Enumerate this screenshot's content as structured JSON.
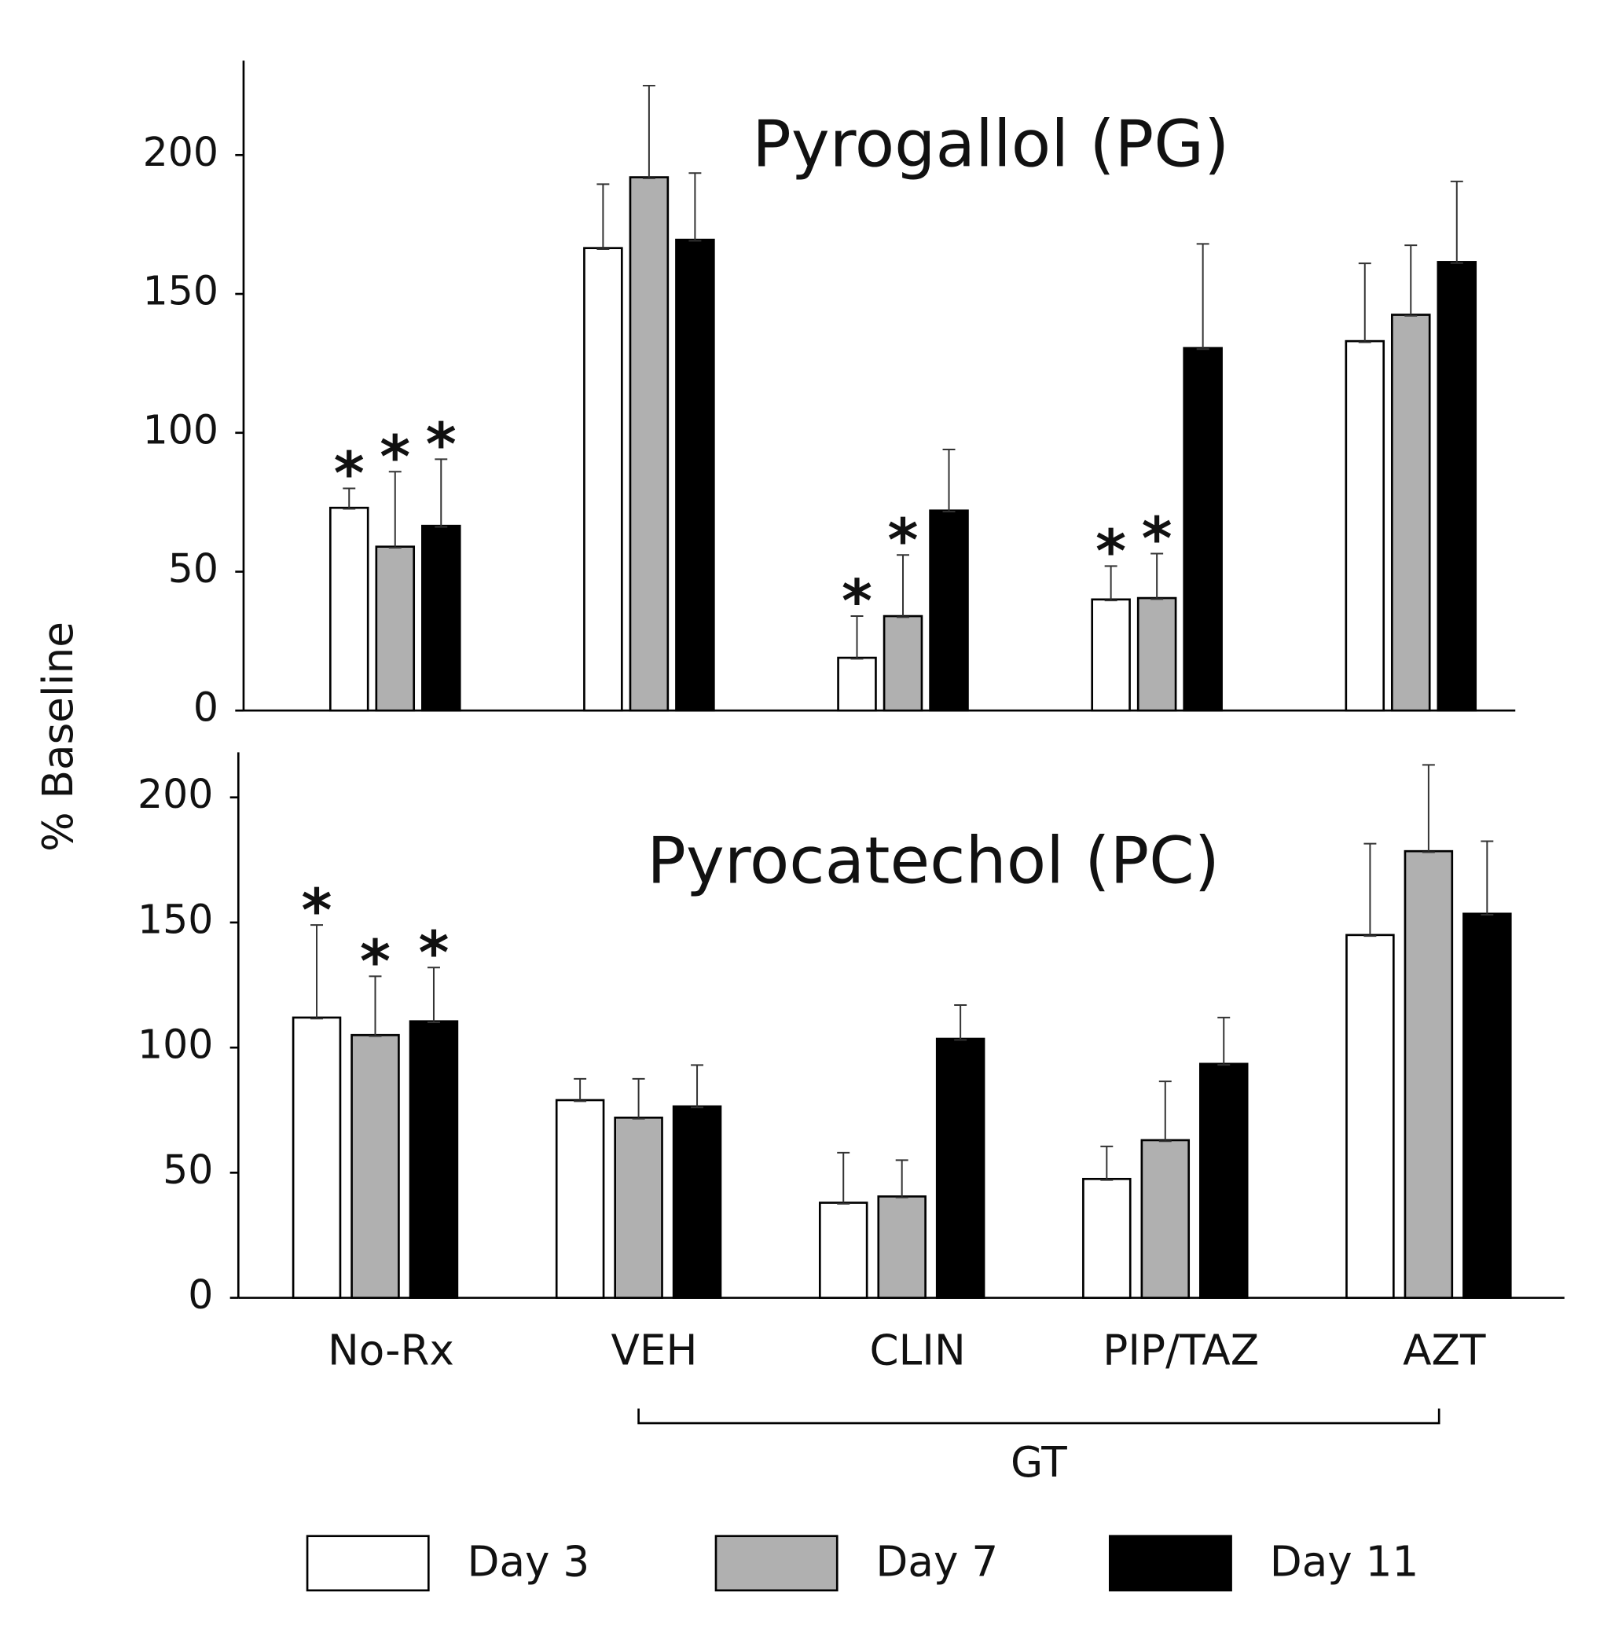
{
  "chart_data": [
    {
      "type": "bar",
      "title": "Pyrogallol (PG)",
      "y_label": "% Baseline",
      "ylim": [
        0,
        234
      ],
      "yticks": [
        0,
        50,
        100,
        150,
        200
      ],
      "series": [
        {
          "color": "#ffffff",
          "values": [
            73,
            166.5,
            19,
            40,
            133
          ],
          "errors": [
            7,
            23,
            15,
            12,
            28
          ],
          "markers": [
            "*",
            null,
            "*",
            "*",
            null
          ]
        },
        {
          "color": "#b0b0b0",
          "values": [
            59,
            192,
            34,
            40.5,
            142.5
          ],
          "errors": [
            27,
            33,
            22,
            16,
            25
          ],
          "markers": [
            "*",
            null,
            "*",
            "*",
            null
          ]
        },
        {
          "color": "#000000",
          "values": [
            66.5,
            169.5,
            72,
            130.5,
            161.5
          ],
          "errors": [
            24,
            24,
            22,
            37.5,
            29
          ],
          "markers": [
            "*",
            null,
            null,
            null,
            null
          ]
        }
      ]
    },
    {
      "type": "bar",
      "title": "Pyrocatechol (PC)",
      "categories": [
        "No-Rx",
        "VEH",
        "CLIN",
        "PIP/TAZ",
        "AZT"
      ],
      "bracket_label": "GT",
      "ylim": [
        0,
        218
      ],
      "yticks": [
        0,
        50,
        100,
        150,
        200
      ],
      "series": [
        {
          "name": "Day 3",
          "color": "#ffffff",
          "values": [
            112,
            79,
            38,
            47.5,
            145
          ],
          "errors": [
            37,
            8.5,
            20,
            13,
            36.5
          ],
          "markers": [
            "*",
            null,
            null,
            null,
            null
          ]
        },
        {
          "name": "Day 7",
          "color": "#b0b0b0",
          "values": [
            105,
            72,
            40.5,
            63,
            178.5
          ],
          "errors": [
            23.5,
            15.5,
            14.5,
            23.5,
            34.5
          ],
          "markers": [
            "*",
            null,
            null,
            null,
            null
          ]
        },
        {
          "name": "Day 11",
          "color": "#000000",
          "values": [
            110.5,
            76.5,
            103.5,
            93.5,
            153.5
          ],
          "errors": [
            21.5,
            16.5,
            13.5,
            18.5,
            29
          ],
          "markers": [
            "*",
            null,
            null,
            null,
            null
          ]
        }
      ]
    }
  ]
}
